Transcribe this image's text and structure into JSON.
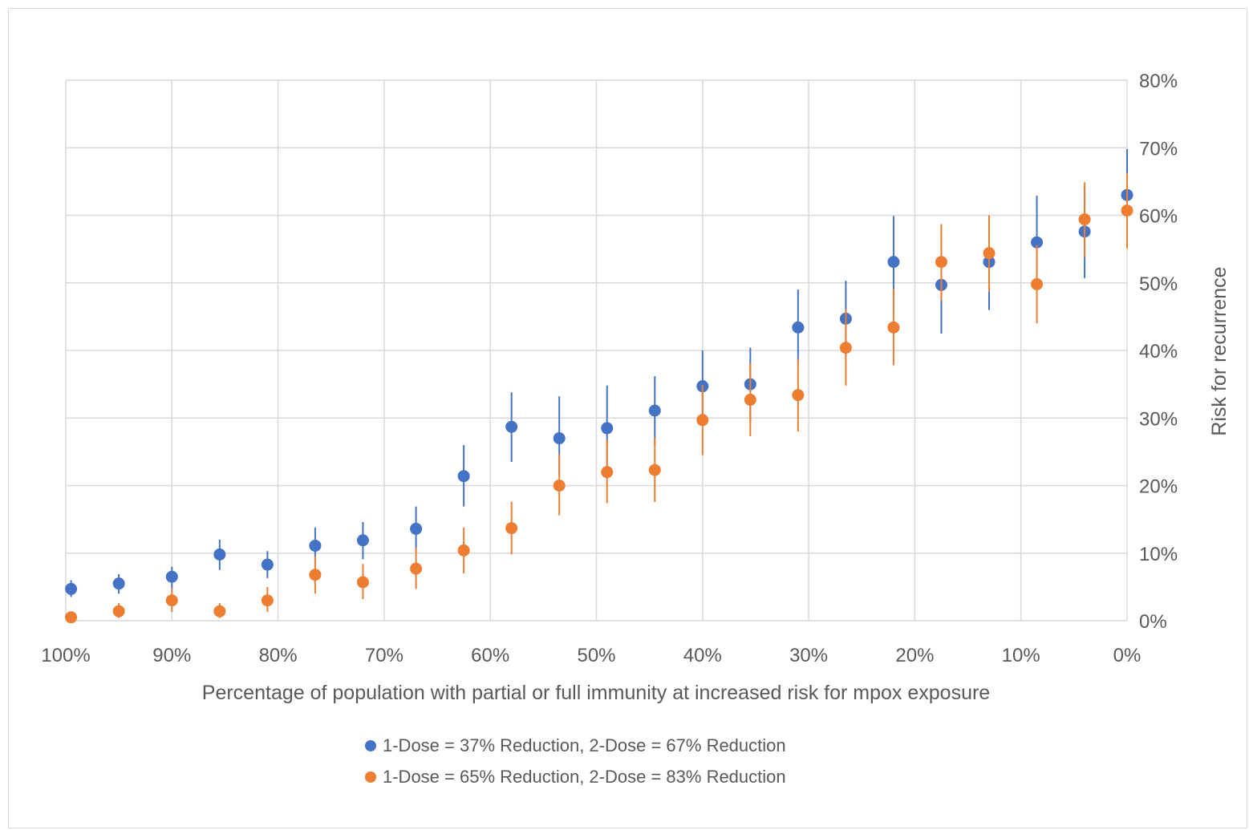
{
  "chart_data": {
    "type": "scatter",
    "xlabel": "Percentage of population with partial or full immunity at increased risk for mpox exposure",
    "ylabel": "Risk for recurrence",
    "x_axis": {
      "range": [
        100,
        0
      ],
      "reversed": true,
      "ticks": [
        100,
        90,
        80,
        70,
        60,
        50,
        40,
        30,
        20,
        10,
        0
      ],
      "tick_labels": [
        "100%",
        "90%",
        "80%",
        "70%",
        "60%",
        "50%",
        "40%",
        "30%",
        "20%",
        "10%",
        "0%"
      ]
    },
    "y_axis": {
      "range": [
        0,
        80
      ],
      "position": "right",
      "ticks": [
        0,
        10,
        20,
        30,
        40,
        50,
        60,
        70,
        80
      ],
      "tick_labels": [
        "0%",
        "10%",
        "20%",
        "30%",
        "40%",
        "50%",
        "60%",
        "70%",
        "80%"
      ]
    },
    "grid": true,
    "legend_position": "bottom",
    "series": [
      {
        "name": "1-Dose = 37% Reduction, 2-Dose = 67% Reduction",
        "color": "#4472C4",
        "points": [
          {
            "x": 99.5,
            "y": 4.7,
            "lo": 3.5,
            "hi": 6.0
          },
          {
            "x": 95.0,
            "y": 5.5,
            "lo": 4.0,
            "hi": 6.9
          },
          {
            "x": 90.0,
            "y": 6.5,
            "lo": 4.8,
            "hi": 8.0
          },
          {
            "x": 85.5,
            "y": 9.8,
            "lo": 7.5,
            "hi": 12.0
          },
          {
            "x": 81.0,
            "y": 8.3,
            "lo": 6.3,
            "hi": 10.3
          },
          {
            "x": 76.5,
            "y": 11.1,
            "lo": 8.6,
            "hi": 13.8
          },
          {
            "x": 72.0,
            "y": 11.9,
            "lo": 9.1,
            "hi": 14.6
          },
          {
            "x": 67.0,
            "y": 13.6,
            "lo": 10.6,
            "hi": 16.9
          },
          {
            "x": 62.5,
            "y": 21.4,
            "lo": 16.9,
            "hi": 26.0
          },
          {
            "x": 58.0,
            "y": 28.7,
            "lo": 23.5,
            "hi": 33.8
          },
          {
            "x": 53.5,
            "y": 27.0,
            "lo": 21.5,
            "hi": 33.2
          },
          {
            "x": 49.0,
            "y": 28.5,
            "lo": 22.3,
            "hi": 34.8
          },
          {
            "x": 44.5,
            "y": 31.1,
            "lo": 26.0,
            "hi": 36.2
          },
          {
            "x": 40.0,
            "y": 34.7,
            "lo": 29.5,
            "hi": 40.0
          },
          {
            "x": 35.5,
            "y": 35.0,
            "lo": 29.5,
            "hi": 40.4
          },
          {
            "x": 31.0,
            "y": 43.4,
            "lo": 38.0,
            "hi": 49.0
          },
          {
            "x": 26.5,
            "y": 44.7,
            "lo": 39.0,
            "hi": 50.3
          },
          {
            "x": 22.0,
            "y": 53.1,
            "lo": 46.0,
            "hi": 59.9
          },
          {
            "x": 17.5,
            "y": 49.7,
            "lo": 42.5,
            "hi": 56.7
          },
          {
            "x": 13.0,
            "y": 53.1,
            "lo": 46.0,
            "hi": 59.9
          },
          {
            "x": 8.5,
            "y": 56.0,
            "lo": 49.2,
            "hi": 62.9
          },
          {
            "x": 4.0,
            "y": 57.6,
            "lo": 50.7,
            "hi": 64.3
          },
          {
            "x": 0.0,
            "y": 63.0,
            "lo": 56.0,
            "hi": 69.8
          }
        ]
      },
      {
        "name": "1-Dose = 65% Reduction, 2-Dose = 83% Reduction",
        "color": "#ED7D31",
        "points": [
          {
            "x": 99.5,
            "y": 0.5,
            "lo": 0.0,
            "hi": 1.0
          },
          {
            "x": 95.0,
            "y": 1.4,
            "lo": 0.4,
            "hi": 2.6
          },
          {
            "x": 90.0,
            "y": 3.0,
            "lo": 1.3,
            "hi": 4.8
          },
          {
            "x": 85.5,
            "y": 1.4,
            "lo": 0.4,
            "hi": 2.6
          },
          {
            "x": 81.0,
            "y": 3.0,
            "lo": 1.3,
            "hi": 5.0
          },
          {
            "x": 76.5,
            "y": 6.8,
            "lo": 4.0,
            "hi": 9.5
          },
          {
            "x": 72.0,
            "y": 5.7,
            "lo": 3.2,
            "hi": 8.4
          },
          {
            "x": 67.0,
            "y": 7.7,
            "lo": 4.7,
            "hi": 10.8
          },
          {
            "x": 62.5,
            "y": 10.4,
            "lo": 7.0,
            "hi": 13.8
          },
          {
            "x": 58.0,
            "y": 13.7,
            "lo": 9.8,
            "hi": 17.6
          },
          {
            "x": 53.5,
            "y": 20.0,
            "lo": 15.6,
            "hi": 24.6
          },
          {
            "x": 49.0,
            "y": 22.0,
            "lo": 17.4,
            "hi": 26.8
          },
          {
            "x": 44.5,
            "y": 22.3,
            "lo": 17.6,
            "hi": 27.1
          },
          {
            "x": 40.0,
            "y": 29.7,
            "lo": 24.5,
            "hi": 34.9
          },
          {
            "x": 35.5,
            "y": 32.7,
            "lo": 27.3,
            "hi": 38.1
          },
          {
            "x": 31.0,
            "y": 33.4,
            "lo": 28.0,
            "hi": 38.8
          },
          {
            "x": 26.5,
            "y": 40.4,
            "lo": 34.8,
            "hi": 46.1
          },
          {
            "x": 22.0,
            "y": 43.4,
            "lo": 37.8,
            "hi": 49.1
          },
          {
            "x": 17.5,
            "y": 53.1,
            "lo": 47.4,
            "hi": 58.7
          },
          {
            "x": 13.0,
            "y": 54.4,
            "lo": 48.7,
            "hi": 60.0
          },
          {
            "x": 8.5,
            "y": 49.8,
            "lo": 44.0,
            "hi": 55.6
          },
          {
            "x": 4.0,
            "y": 59.4,
            "lo": 53.8,
            "hi": 64.9
          },
          {
            "x": 0.0,
            "y": 60.7,
            "lo": 55.1,
            "hi": 66.2
          }
        ]
      }
    ]
  }
}
